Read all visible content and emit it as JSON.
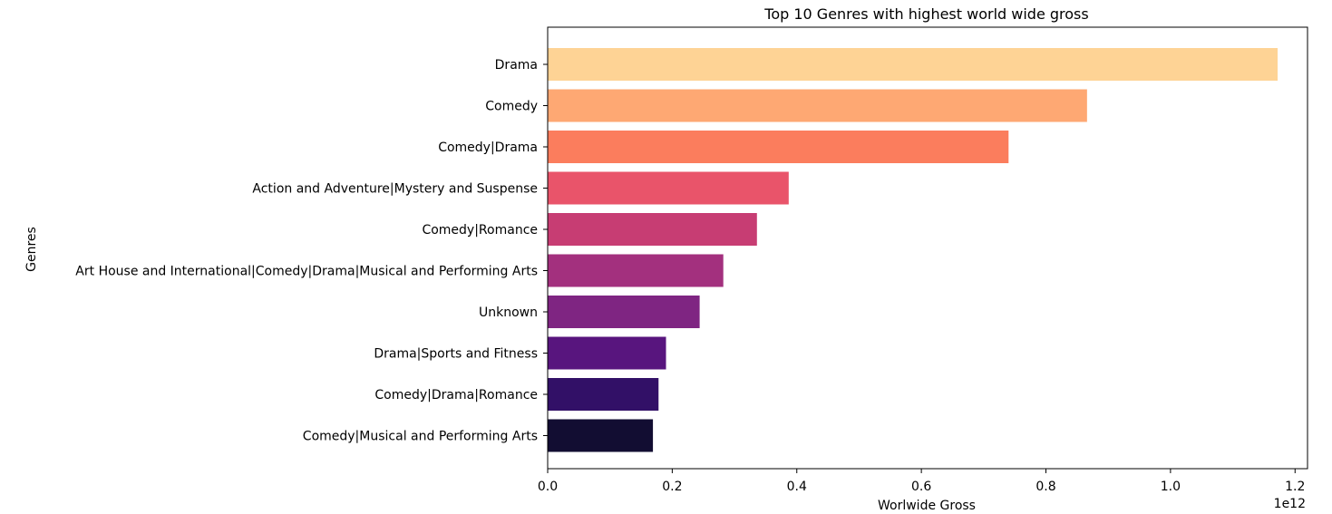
{
  "chart_data": {
    "type": "bar",
    "orientation": "horizontal",
    "title": "Top 10 Genres with highest world wide gross",
    "xlabel": "Worlwide Gross",
    "ylabel": "Genres",
    "x_scale_label": "1e12",
    "xlim": [
      0,
      1.22
    ],
    "x_ticks": [
      0.0,
      0.2,
      0.4,
      0.6,
      0.8,
      1.0,
      1.2
    ],
    "x_tick_labels": [
      "0.0",
      "0.2",
      "0.4",
      "0.6",
      "0.8",
      "1.0",
      "1.2"
    ],
    "grid": false,
    "categories": [
      "Drama",
      "Comedy",
      "Comedy|Drama",
      "Action and Adventure|Mystery and Suspense",
      "Comedy|Romance",
      "Art House and International|Comedy|Drama|Musical and Performing Arts",
      "Unknown",
      "Drama|Sports and Fitness",
      "Comedy|Drama|Romance",
      "Comedy|Musical and Performing Arts"
    ],
    "values": [
      1.172,
      0.866,
      0.74,
      0.387,
      0.336,
      0.282,
      0.244,
      0.19,
      0.178,
      0.169
    ],
    "colors": [
      "#fed395",
      "#fea873",
      "#fb7d5d",
      "#e9546a",
      "#c73d73",
      "#a3307e",
      "#7f2582",
      "#58157e",
      "#321067",
      "#120d32"
    ]
  }
}
